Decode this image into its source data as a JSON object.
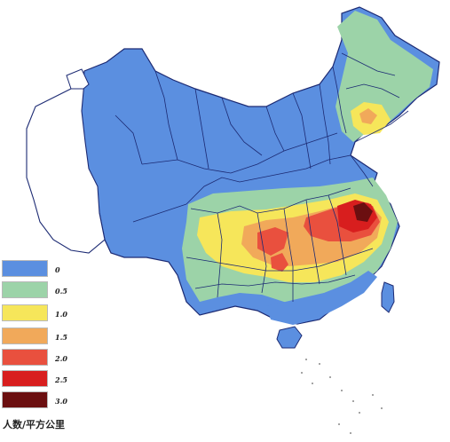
{
  "map": {
    "colors": {
      "c0": "#5b8fe0",
      "c05": "#9cd3a8",
      "c10": "#f6e65a",
      "c15": "#f1a95a",
      "c20": "#e9503e",
      "c25": "#d81e1e",
      "c30": "#6b0f10",
      "land_outline": "#1c2a73",
      "unshaded": "#ffffff"
    },
    "legend": {
      "items": [
        {
          "label": "0",
          "color": "#5b8fe0"
        },
        {
          "label": "0.5",
          "color": "#9cd3a8"
        },
        {
          "label": "1.0",
          "color": "#f6e65a"
        },
        {
          "label": "1.5",
          "color": "#f1a95a"
        },
        {
          "label": "2.0",
          "color": "#e9503e"
        },
        {
          "label": "2.5",
          "color": "#d81e1e"
        },
        {
          "label": "3.0",
          "color": "#6b0f10"
        }
      ],
      "caption": "人数/平方公里"
    }
  }
}
